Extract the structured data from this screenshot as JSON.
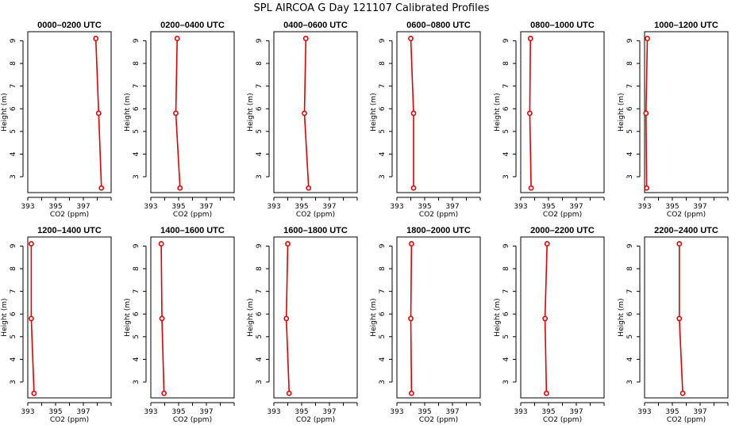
{
  "figure": {
    "title": "SPL AIRCOA G  Day 121107  Calibrated Profiles"
  },
  "chart_data": [
    {
      "type": "line",
      "title": "0000–0200 UTC",
      "xlabel": "CO2 (ppm)",
      "ylabel": "Height (m)",
      "xlim": [
        393,
        399
      ],
      "ylim": [
        2.3,
        9.4
      ],
      "xticks": [
        "393",
        "395",
        "397"
      ],
      "yticks": [
        "3",
        "4",
        "5",
        "6",
        "7",
        "8",
        "9"
      ],
      "x": [
        397.9,
        398.1,
        398.3
      ],
      "y": [
        9.1,
        5.8,
        2.5
      ]
    },
    {
      "type": "line",
      "title": "0200–0400 UTC",
      "xlabel": "CO2 (ppm)",
      "ylabel": "Height (m)",
      "xlim": [
        393,
        399
      ],
      "ylim": [
        2.3,
        9.4
      ],
      "xticks": [
        "393",
        "395",
        "397"
      ],
      "yticks": [
        "3",
        "4",
        "5",
        "6",
        "7",
        "8",
        "9"
      ],
      "x": [
        394.9,
        394.8,
        395.1
      ],
      "y": [
        9.1,
        5.8,
        2.5
      ]
    },
    {
      "type": "line",
      "title": "0400–0600 UTC",
      "xlabel": "CO2 (ppm)",
      "ylabel": "Height (m)",
      "xlim": [
        393,
        399
      ],
      "ylim": [
        2.3,
        9.4
      ],
      "xticks": [
        "393",
        "395",
        "397"
      ],
      "yticks": [
        "3",
        "4",
        "5",
        "6",
        "7",
        "8",
        "9"
      ],
      "x": [
        395.3,
        395.2,
        395.5
      ],
      "y": [
        9.1,
        5.8,
        2.5
      ]
    },
    {
      "type": "line",
      "title": "0600–0800 UTC",
      "xlabel": "CO2 (ppm)",
      "ylabel": "Height (m)",
      "xlim": [
        393,
        399
      ],
      "ylim": [
        2.3,
        9.4
      ],
      "xticks": [
        "393",
        "395",
        "397"
      ],
      "yticks": [
        "3",
        "4",
        "5",
        "6",
        "7",
        "8",
        "9"
      ],
      "x": [
        394.0,
        394.2,
        394.2
      ],
      "y": [
        9.1,
        5.8,
        2.5
      ]
    },
    {
      "type": "line",
      "title": "0800–1000 UTC",
      "xlabel": "CO2 (ppm)",
      "ylabel": "Height (m)",
      "xlim": [
        393,
        399
      ],
      "ylim": [
        2.3,
        9.4
      ],
      "xticks": [
        "393",
        "395",
        "397"
      ],
      "yticks": [
        "3",
        "4",
        "5",
        "6",
        "7",
        "8",
        "9"
      ],
      "x": [
        393.7,
        393.65,
        393.75
      ],
      "y": [
        9.1,
        5.8,
        2.5
      ]
    },
    {
      "type": "line",
      "title": "1000–1200 UTC",
      "xlabel": "CO2 (ppm)",
      "ylabel": "Height (m)",
      "xlim": [
        393,
        399
      ],
      "ylim": [
        2.3,
        9.4
      ],
      "xticks": [
        "393",
        "395",
        "397"
      ],
      "yticks": [
        "3",
        "4",
        "5",
        "6",
        "7",
        "8",
        "9"
      ],
      "x": [
        393.2,
        393.1,
        393.15
      ],
      "y": [
        9.1,
        5.8,
        2.5
      ]
    },
    {
      "type": "line",
      "title": "1200–1400 UTC",
      "xlabel": "CO2 (ppm)",
      "ylabel": "Height (m)",
      "xlim": [
        393,
        399
      ],
      "ylim": [
        2.3,
        9.4
      ],
      "xticks": [
        "393",
        "395",
        "397"
      ],
      "yticks": [
        "3",
        "4",
        "5",
        "6",
        "7",
        "8",
        "9"
      ],
      "x": [
        393.25,
        393.25,
        393.45
      ],
      "y": [
        9.1,
        5.8,
        2.5
      ]
    },
    {
      "type": "line",
      "title": "1400–1600 UTC",
      "xlabel": "CO2 (ppm)",
      "ylabel": "Height (m)",
      "xlim": [
        393,
        399
      ],
      "ylim": [
        2.3,
        9.4
      ],
      "xticks": [
        "393",
        "395",
        "397"
      ],
      "yticks": [
        "3",
        "4",
        "5",
        "6",
        "7",
        "8",
        "9"
      ],
      "x": [
        393.75,
        393.8,
        393.95
      ],
      "y": [
        9.1,
        5.8,
        2.5
      ]
    },
    {
      "type": "line",
      "title": "1600–1800 UTC",
      "xlabel": "CO2 (ppm)",
      "ylabel": "Height (m)",
      "xlim": [
        393,
        399
      ],
      "ylim": [
        2.3,
        9.4
      ],
      "xticks": [
        "393",
        "395",
        "397"
      ],
      "yticks": [
        "3",
        "4",
        "5",
        "6",
        "7",
        "8",
        "9"
      ],
      "x": [
        394.0,
        393.9,
        394.1
      ],
      "y": [
        9.1,
        5.8,
        2.5
      ]
    },
    {
      "type": "line",
      "title": "1800–2000 UTC",
      "xlabel": "CO2 (ppm)",
      "ylabel": "Height (m)",
      "xlim": [
        393,
        399
      ],
      "ylim": [
        2.3,
        9.4
      ],
      "xticks": [
        "393",
        "395",
        "397"
      ],
      "yticks": [
        "3",
        "4",
        "5",
        "6",
        "7",
        "8",
        "9"
      ],
      "x": [
        394.05,
        394.0,
        394.05
      ],
      "y": [
        9.1,
        5.8,
        2.5
      ]
    },
    {
      "type": "line",
      "title": "2000–2200 UTC",
      "xlabel": "CO2 (ppm)",
      "ylabel": "Height (m)",
      "xlim": [
        393,
        399
      ],
      "ylim": [
        2.3,
        9.4
      ],
      "xticks": [
        "393",
        "395",
        "397"
      ],
      "yticks": [
        "3",
        "4",
        "5",
        "6",
        "7",
        "8",
        "9"
      ],
      "x": [
        394.9,
        394.75,
        394.85
      ],
      "y": [
        9.1,
        5.8,
        2.5
      ]
    },
    {
      "type": "line",
      "title": "2200–2400 UTC",
      "xlabel": "CO2 (ppm)",
      "ylabel": "Height (m)",
      "xlim": [
        393,
        399
      ],
      "ylim": [
        2.3,
        9.4
      ],
      "xticks": [
        "393",
        "395",
        "397"
      ],
      "yticks": [
        "3",
        "4",
        "5",
        "6",
        "7",
        "8",
        "9"
      ],
      "x": [
        395.5,
        395.5,
        395.75
      ],
      "y": [
        9.1,
        5.8,
        2.5
      ]
    }
  ]
}
